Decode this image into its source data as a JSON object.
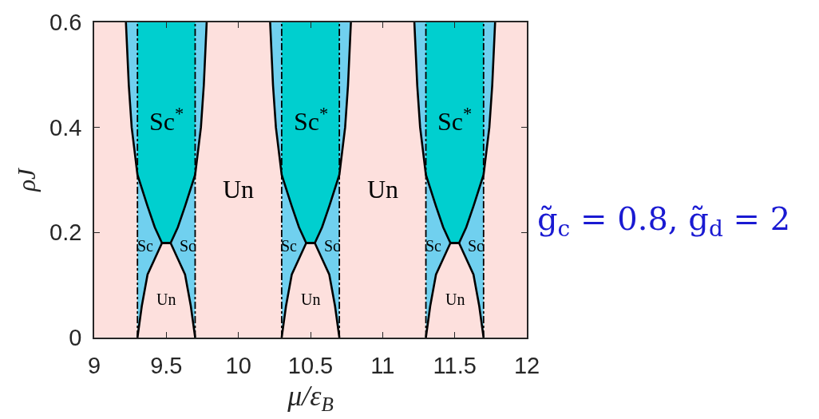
{
  "chart_data": {
    "type": "area",
    "xlabel": "μ/ε$_{B}$",
    "ylabel": "ρJ",
    "xlim": [
      9,
      12
    ],
    "xticks": [
      9,
      9.5,
      10,
      10.5,
      11,
      11.5,
      12
    ],
    "ylim": [
      0,
      0.6
    ],
    "yticks": [
      0,
      0.2,
      0.4,
      0.6
    ],
    "ref_lines": [
      {
        "axis": "x",
        "value": 9.3,
        "color": "#000000",
        "line_style": "dashdot"
      },
      {
        "axis": "x",
        "value": 9.7,
        "color": "#000000",
        "line_style": "dashdot"
      },
      {
        "axis": "x",
        "value": 10.3,
        "color": "#000000",
        "line_style": "dashdot"
      },
      {
        "axis": "x",
        "value": 10.7,
        "color": "#000000",
        "line_style": "dashdot"
      },
      {
        "axis": "x",
        "value": 11.3,
        "color": "#000000",
        "line_style": "dashdot"
      },
      {
        "axis": "x",
        "value": 11.7,
        "color": "#000000",
        "line_style": "dashdot"
      }
    ],
    "series": [
      {
        "color": "#70d0ef",
        "x": [
          9.22,
          9.78
        ],
        "values": [
          0.6,
          0.6
        ]
      },
      {
        "name": "Sc$^{*}$",
        "color": "#00cfcf",
        "x": [
          9.3,
          9.7
        ],
        "values": [
          0.6,
          0.6
        ]
      },
      {
        "name": "Sc",
        "color": "#70d0ef",
        "x": [
          9.3,
          9.37,
          9.42,
          9.47
        ],
        "values": [
          0.31,
          0.25,
          0.21,
          0.18
        ]
      },
      {
        "name": "Sc",
        "color": "#70d0ef",
        "x": [
          9.53,
          9.58,
          9.63,
          9.7
        ],
        "values": [
          0.18,
          0.21,
          0.25,
          0.31
        ]
      },
      {
        "name": "Un",
        "color": "#fde0dd",
        "x": [
          9.3,
          9.33,
          9.37,
          9.42,
          9.47,
          9.53,
          9.58,
          9.63,
          9.67,
          9.7
        ],
        "values": [
          0,
          0.06,
          0.12,
          0.15,
          0.18,
          0.18,
          0.15,
          0.12,
          0.06,
          0
        ]
      },
      {
        "color": "#70d0ef",
        "x": [
          10.22,
          10.78
        ],
        "values": [
          0.6,
          0.6
        ]
      },
      {
        "name": "Sc$^{*}$",
        "color": "#00cfcf",
        "x": [
          10.3,
          10.7
        ],
        "values": [
          0.6,
          0.6
        ]
      },
      {
        "name": "Sc",
        "color": "#70d0ef",
        "x": [
          10.3,
          10.37,
          10.42,
          10.47
        ],
        "values": [
          0.31,
          0.25,
          0.21,
          0.18
        ]
      },
      {
        "name": "Sc",
        "color": "#70d0ef",
        "x": [
          10.53,
          10.58,
          10.63,
          10.7
        ],
        "values": [
          0.18,
          0.21,
          0.25,
          0.31
        ]
      },
      {
        "name": "Un",
        "color": "#fde0dd",
        "x": [
          10.3,
          10.33,
          10.37,
          10.42,
          10.47,
          10.53,
          10.58,
          10.63,
          10.67,
          10.7
        ],
        "values": [
          0,
          0.06,
          0.12,
          0.15,
          0.18,
          0.18,
          0.15,
          0.12,
          0.06,
          0
        ]
      },
      {
        "color": "#70d0ef",
        "x": [
          11.22,
          11.78
        ],
        "values": [
          0.6,
          0.6
        ]
      },
      {
        "name": "Sc$^{*}$",
        "color": "#00cfcf",
        "x": [
          11.3,
          11.7
        ],
        "values": [
          0.6,
          0.6
        ]
      },
      {
        "name": "Sc",
        "color": "#70d0ef",
        "x": [
          11.3,
          11.37,
          11.42,
          11.47
        ],
        "values": [
          0.31,
          0.25,
          0.21,
          0.18
        ]
      },
      {
        "name": "Sc",
        "color": "#70d0ef",
        "x": [
          11.53,
          11.58,
          11.63,
          11.7
        ],
        "values": [
          0.18,
          0.21,
          0.25,
          0.31
        ]
      },
      {
        "name": "Un",
        "color": "#fde0dd",
        "x": [
          11.3,
          11.33,
          11.37,
          11.42,
          11.47,
          11.53,
          11.58,
          11.63,
          11.67,
          11.7
        ],
        "values": [
          0,
          0.06,
          0.12,
          0.15,
          0.18,
          0.18,
          0.15,
          0.12,
          0.06,
          0
        ]
      },
      {
        "color": "#fde0dd",
        "x": [
          9,
          9.22,
          9.24,
          9.26,
          9.3
        ],
        "values": [
          0.6,
          0.6,
          0.48,
          0.4,
          0.31
        ]
      },
      {
        "name": "Un",
        "color": "#fde0dd",
        "x": [
          9.7,
          9.74,
          9.76,
          9.78,
          10.22,
          10.24,
          10.26,
          10.3
        ],
        "values": [
          0.31,
          0.4,
          0.48,
          0.6,
          0.6,
          0.48,
          0.4,
          0.31
        ]
      },
      {
        "name": "Un",
        "color": "#fde0dd",
        "x": [
          10.7,
          10.74,
          10.76,
          10.78,
          11.22,
          11.24,
          11.26,
          11.3
        ],
        "values": [
          0.31,
          0.4,
          0.48,
          0.6,
          0.6,
          0.48,
          0.4,
          0.31
        ]
      },
      {
        "color": "#fde0dd",
        "x": [
          11.7,
          11.74,
          11.76,
          11.78,
          12
        ],
        "values": [
          0.31,
          0.4,
          0.48,
          0.6,
          0.6
        ]
      },
      {
        "type": "line",
        "color": "#000000",
        "x": [
          9.3,
          9.33,
          9.37,
          9.42,
          9.47,
          9.53,
          9.58,
          9.63,
          9.7,
          9.74,
          9.76,
          9.78,
          10,
          10.3,
          10.33,
          10.37,
          10.42,
          10.47,
          10.53,
          10.58,
          10.63,
          10.7,
          10.74,
          10.76,
          10.78,
          11,
          11.3,
          11.33,
          11.37,
          11.42,
          11.47,
          11.53,
          11.58,
          11.63,
          11.7,
          11.74,
          11.76,
          11.78
        ],
        "values": [
          0,
          0.06,
          0.12,
          0.15,
          0.18,
          0.18,
          0.21,
          0.25,
          0.31,
          0.4,
          0.48,
          0.6,
          null,
          0,
          0.06,
          0.12,
          0.15,
          0.18,
          0.18,
          0.21,
          0.25,
          0.31,
          0.4,
          0.48,
          0.6,
          null,
          0,
          0.06,
          0.12,
          0.15,
          0.18,
          0.18,
          0.21,
          0.25,
          0.31,
          0.4,
          0.48,
          0.6
        ]
      },
      {
        "type": "line",
        "color": "#000000",
        "x": [
          9.22,
          9.24,
          9.26,
          9.3,
          9.37,
          9.42,
          9.47,
          9.53,
          9.58,
          9.63,
          9.67,
          9.7,
          10,
          10.22,
          10.24,
          10.26,
          10.3,
          10.37,
          10.42,
          10.47,
          10.53,
          10.58,
          10.63,
          10.67,
          10.7,
          11,
          11.22,
          11.24,
          11.26,
          11.3,
          11.37,
          11.42,
          11.47,
          11.53,
          11.58,
          11.63,
          11.67,
          11.7
        ],
        "values": [
          0.6,
          0.48,
          0.4,
          0.31,
          0.25,
          0.21,
          0.18,
          0.18,
          0.15,
          0.12,
          0.06,
          0,
          null,
          0.6,
          0.48,
          0.4,
          0.31,
          0.25,
          0.21,
          0.18,
          0.18,
          0.15,
          0.12,
          0.06,
          0,
          null,
          0.6,
          0.48,
          0.4,
          0.31,
          0.25,
          0.21,
          0.18,
          0.18,
          0.15,
          0.12,
          0.06,
          0
        ]
      }
    ],
    "annotations": [
      "g̃$_{c}$ = 0.8, g̃$_{d}$ = 2"
    ]
  }
}
